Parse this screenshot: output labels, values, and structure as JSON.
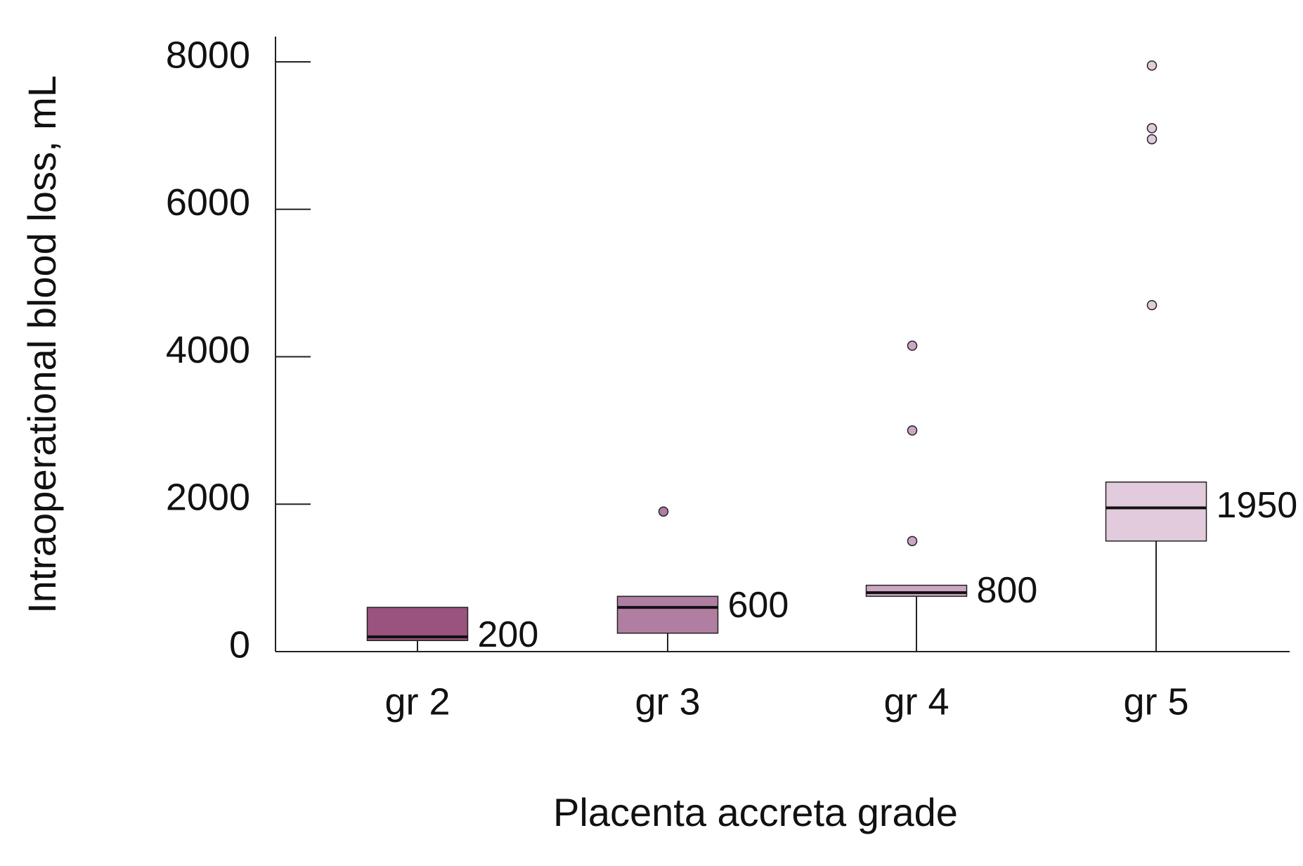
{
  "chart_data": {
    "type": "box",
    "x_label": "Placenta accreta grade",
    "y_label": "Intraoperational blood loss, mL",
    "categories": [
      "gr 2",
      "gr 3",
      "gr 4",
      "gr 5"
    ],
    "boxes": [
      {
        "whisker_low": 0,
        "q1": 150,
        "median": 200,
        "q3": 600,
        "outliers": [],
        "color": "#9a527e"
      },
      {
        "whisker_low": 0,
        "q1": 250,
        "median": 600,
        "q3": 750,
        "outliers": [
          1900
        ],
        "color": "#b07ea0"
      },
      {
        "whisker_low": 0,
        "q1": 750,
        "median": 800,
        "q3": 900,
        "outliers": [
          4150,
          3000,
          1500
        ],
        "color": "#cda6c4"
      },
      {
        "whisker_low": 0,
        "q1": 1500,
        "median": 1950,
        "q3": 2300,
        "outliers": [
          7950,
          7100,
          6950,
          4700
        ],
        "color": "#e2cbdc"
      }
    ],
    "ylim": [
      0,
      8000
    ],
    "yticks": [
      0,
      2000,
      4000,
      6000,
      8000
    ]
  }
}
